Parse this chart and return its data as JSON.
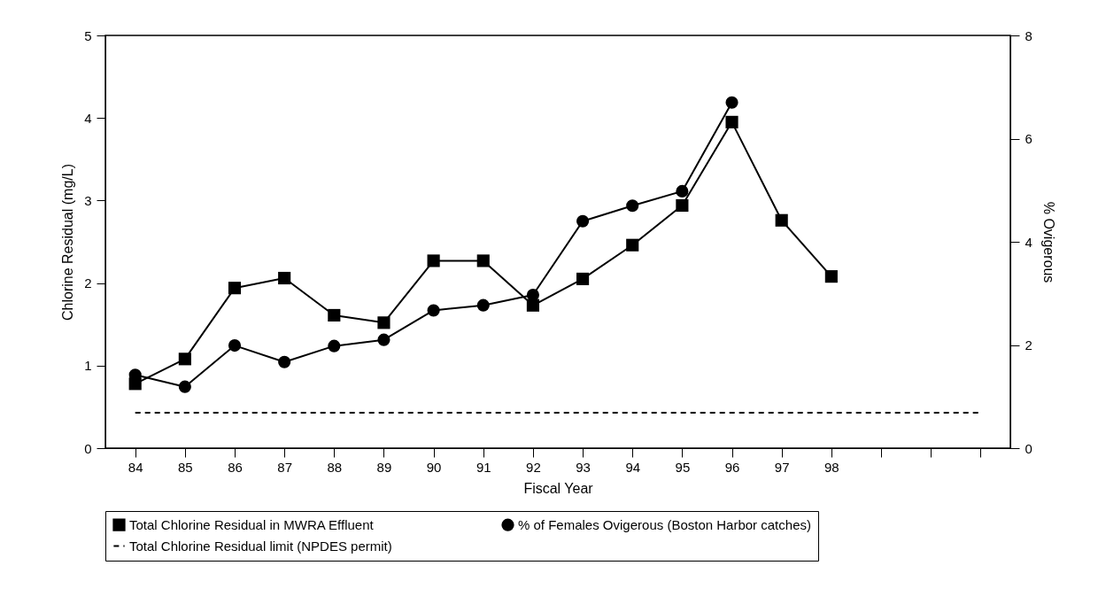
{
  "chart_data": {
    "type": "line",
    "xlabel": "Fiscal Year",
    "ylabel": "Chlorine Residual (mg/L)",
    "y2label": "% Ovigerous",
    "categories": [
      "84",
      "85",
      "86",
      "87",
      "88",
      "89",
      "90",
      "91",
      "92",
      "93",
      "94",
      "95",
      "96",
      "97",
      "98",
      null,
      null,
      null
    ],
    "series": [
      {
        "name": "Total Chlorine Residual in MWRA Effluent",
        "color": "#000000",
        "marker": "square",
        "line_style": "solid",
        "values": [
          0.78,
          1.08,
          1.94,
          2.06,
          1.61,
          1.52,
          2.27,
          2.27,
          1.73,
          2.05,
          2.46,
          2.94,
          3.95,
          2.76,
          2.08,
          null,
          null,
          null
        ]
      },
      {
        "name": "% of Females Ovigerous (Boston Harbor catches)",
        "color": "#000000",
        "marker": "circle",
        "line_style": "solid",
        "axis": "y2",
        "values": [
          1.42,
          1.19,
          1.99,
          1.67,
          1.98,
          2.1,
          2.67,
          2.77,
          2.97,
          4.4,
          4.7,
          4.98,
          6.7,
          null,
          null,
          null,
          null,
          null
        ]
      },
      {
        "name": "Total Chlorine Residual limit (NPDES permit)",
        "color": "#000000",
        "marker": "none",
        "line_style": "dashed",
        "values": [
          0.43,
          0.43,
          0.43,
          0.43,
          0.43,
          0.43,
          0.43,
          0.43,
          0.43,
          0.43,
          0.43,
          0.43,
          0.43,
          0.43,
          0.43,
          0.43,
          0.43,
          0.43
        ]
      }
    ],
    "ylim": [
      0,
      5
    ],
    "yticks": [
      0,
      1,
      2,
      3,
      4,
      5
    ],
    "y2lim": [
      0,
      8
    ],
    "y2ticks": [
      0,
      2,
      4,
      6,
      8
    ],
    "grid": false,
    "legend": "bottom"
  }
}
